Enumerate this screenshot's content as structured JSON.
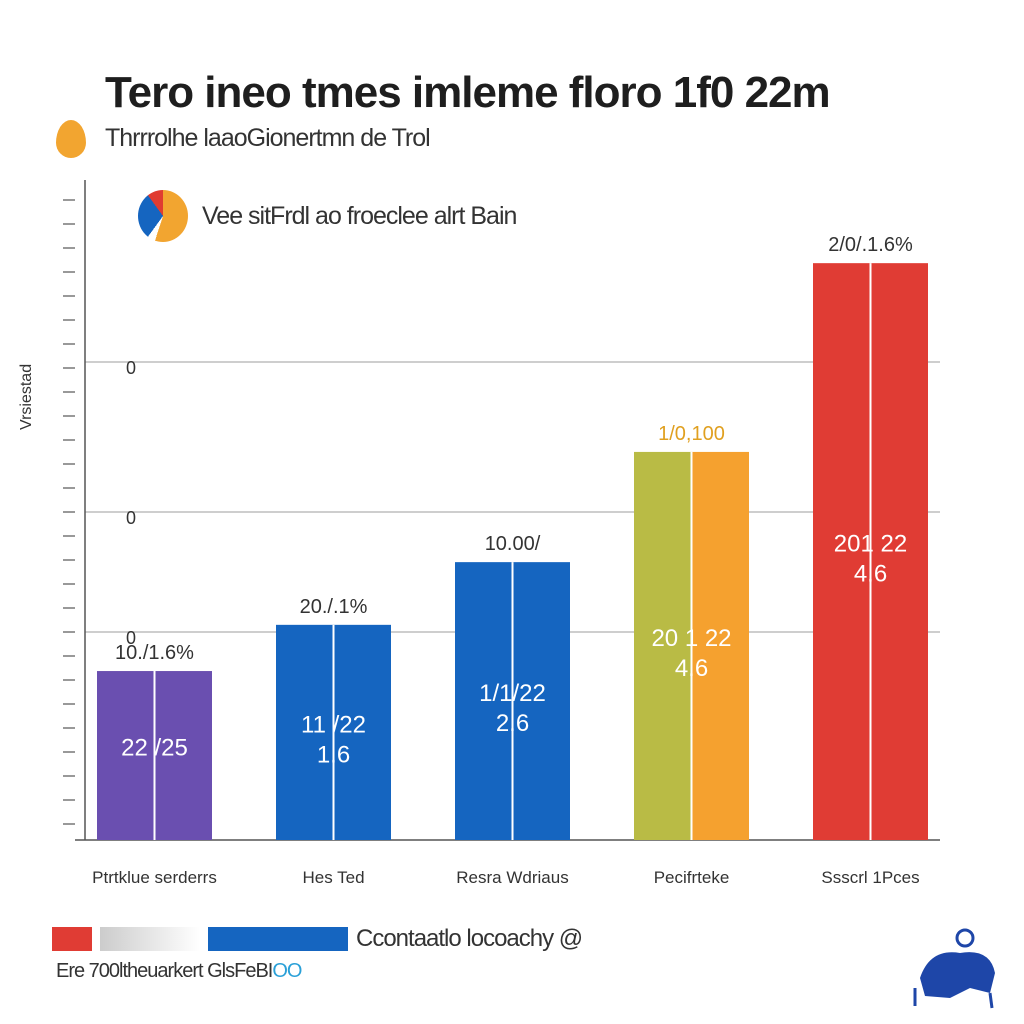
{
  "title": "Tero ineo tmes imleme floro 1f0 22m",
  "subtitle": "Thrrrolhe laaoGionertmn de Trol",
  "legend_top": "Vee sitFrdl ao froeclee alrt Bain",
  "footer_legend": "Ccontaatlo locoachy @",
  "footnote": "Ere 700ltheuarkert GlsFeBI",
  "footnote_accent": "OO",
  "colors": {
    "purple": "#6a4fb0",
    "blue": "#1565c0",
    "olive": "#b9bb45",
    "orange": "#f5a12f",
    "red": "#e03c34",
    "grid": "#bdbdbd"
  },
  "chart_data": {
    "type": "bar",
    "title": "Tero ineo tmes imleme floro 1f0 22m",
    "ylabel": "Vrsiestad",
    "ylim": [
      0,
      100
    ],
    "y_ticks": [
      "0",
      "0",
      "0"
    ],
    "grid": true,
    "categories": [
      "Ptrtklue serderrs",
      "Hes Ted",
      "Resra Wdriaus",
      "Pecifrteke",
      "Ssscrl 1Pces"
    ],
    "values": [
      25.6,
      32.6,
      42.1,
      58.8,
      87.4
    ],
    "top_labels": [
      "10./1.6%",
      "20./.1%",
      "10.00/",
      "1/0,100",
      "2/0/.1.6%"
    ],
    "inner_labels": [
      [
        "22 /25",
        ""
      ],
      [
        "11 /22",
        "1.6"
      ],
      [
        "1/1/22",
        "2.6"
      ],
      [
        "20 1 22",
        "4.6"
      ],
      [
        "201 22",
        "4.6"
      ]
    ],
    "bar_colors": [
      [
        "#6a4fb0",
        "#6a4fb0"
      ],
      [
        "#1565c0",
        "#1565c0"
      ],
      [
        "#1565c0",
        "#1565c0"
      ],
      [
        "#b9bb45",
        "#f5a12f"
      ],
      [
        "#e03c34",
        "#e03c34"
      ]
    ],
    "top_label_colors": [
      "#333",
      "#333",
      "#333",
      "#e0a020",
      "#333"
    ],
    "inner_label_colors": [
      "#fff",
      "#fff",
      "#fff",
      "#fff",
      "#fff"
    ]
  }
}
